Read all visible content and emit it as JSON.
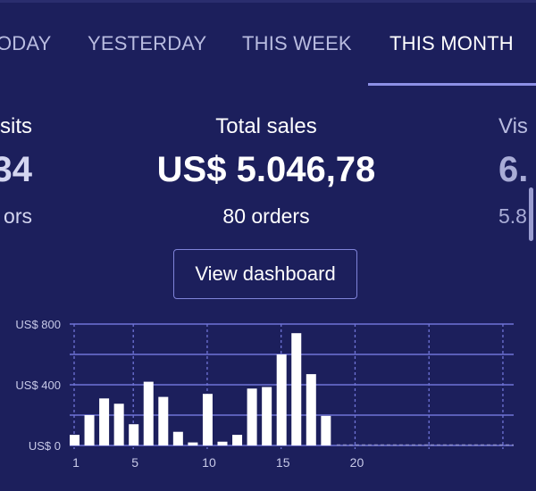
{
  "tabs": [
    {
      "label": "ODAY",
      "active": false
    },
    {
      "label": "YESTERDAY",
      "active": false
    },
    {
      "label": "THIS WEEK",
      "active": false
    },
    {
      "label": "THIS MONTH",
      "active": true
    }
  ],
  "stats": {
    "left": {
      "label": "sits",
      "value": "34",
      "sub": "ors"
    },
    "center": {
      "label": "Total sales",
      "value": "US$ 5.046,78",
      "sub": "80 orders"
    },
    "right": {
      "label": "Vis",
      "value": "6.",
      "sub": "5.8"
    }
  },
  "dashboard_button": {
    "label": "View dashboard"
  },
  "colors": {
    "background": "#1c1f5c",
    "accent": "#8d90e6",
    "bar": "#ffffff",
    "grid": "#6f73d6"
  },
  "chart_data": {
    "type": "bar",
    "x": [
      1,
      2,
      3,
      4,
      5,
      6,
      7,
      8,
      9,
      10,
      11,
      12,
      13,
      14,
      15,
      16,
      17,
      18,
      19,
      20,
      21,
      22,
      23,
      24,
      25,
      26,
      27,
      28,
      29,
      30
    ],
    "values": [
      70,
      200,
      310,
      275,
      140,
      420,
      320,
      90,
      20,
      340,
      25,
      70,
      375,
      385,
      600,
      740,
      470,
      195,
      0,
      0,
      0,
      0,
      0,
      0,
      0,
      0,
      0,
      0,
      0,
      0
    ],
    "x_ticks": [
      "1",
      "5",
      "10",
      "15",
      "20"
    ],
    "y_ticks": [
      "US$ 0",
      "US$ 400",
      "US$ 800"
    ],
    "ylim": [
      0,
      800
    ],
    "grid": true
  }
}
